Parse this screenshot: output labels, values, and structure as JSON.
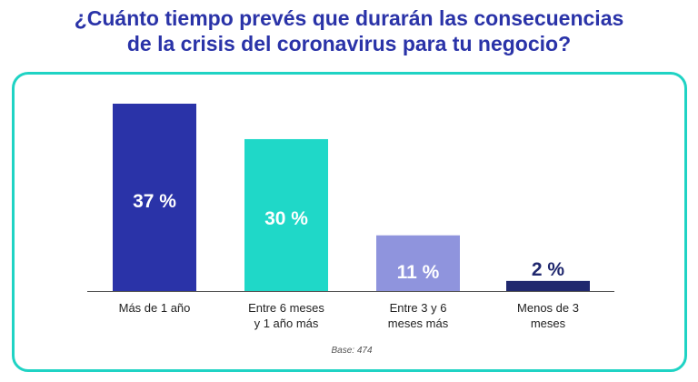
{
  "chart_data": {
    "type": "bar",
    "title_lines": [
      "¿Cuánto tiempo prevés que durarán las consecuencias",
      "de la crisis del coronavirus para tu negocio?"
    ],
    "categories": [
      [
        "Más de 1 año"
      ],
      [
        "Entre 6 meses",
        "y 1 año más"
      ],
      [
        "Entre 3 y 6",
        "meses más"
      ],
      [
        "Menos de 3",
        "meses"
      ]
    ],
    "values": [
      37,
      30,
      11,
      2
    ],
    "value_labels": [
      "37 %",
      "30 %",
      "11 %",
      "2 %"
    ],
    "unit": "%",
    "ylim": [
      0,
      37
    ],
    "colors": [
      "#2a33a8",
      "#1fd8c8",
      "#8f94dd",
      "#20286e"
    ],
    "label_colors": [
      "#ffffff",
      "#ffffff",
      "#ffffff",
      "#20286e"
    ],
    "base_note": "Base: 474",
    "grid": false,
    "legend": "none"
  },
  "theme": {
    "title_color": "#2a33a8",
    "border_color": "#1fd3c4",
    "axis_color": "#555555"
  }
}
